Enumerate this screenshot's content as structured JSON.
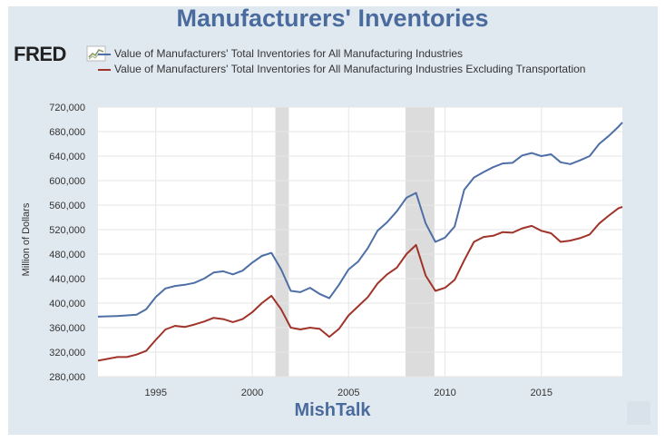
{
  "title": "Manufacturers' Inventories",
  "logo": {
    "text": "FRED"
  },
  "watermark": "MishTalk",
  "chart_data": {
    "type": "line",
    "ylabel": "Million of Dollars",
    "xlabel": "",
    "ylim": [
      280000,
      720000
    ],
    "xlim": [
      1992.0,
      2019.2
    ],
    "yticks": [
      280000,
      320000,
      360000,
      400000,
      440000,
      480000,
      520000,
      560000,
      600000,
      640000,
      680000,
      720000
    ],
    "ytick_labels": [
      "280,000",
      "320,000",
      "360,000",
      "400,000",
      "440,000",
      "480,000",
      "520,000",
      "560,000",
      "600,000",
      "640,000",
      "680,000",
      "720,000"
    ],
    "xticks": [
      1995,
      2000,
      2005,
      2010,
      2015
    ],
    "xtick_labels": [
      "1995",
      "2000",
      "2005",
      "2010",
      "2015"
    ],
    "grid": true,
    "legend": "top",
    "recessions": [
      [
        2001.2,
        2001.9
      ],
      [
        2007.95,
        2009.45
      ]
    ],
    "series": [
      {
        "name": "Value of Manufacturers' Total Inventories for All Manufacturing Industries",
        "color": "#4e6fa6",
        "x": [
          1992.0,
          1993.0,
          1993.5,
          1994.0,
          1994.5,
          1995.0,
          1995.5,
          1996.0,
          1996.5,
          1997.0,
          1997.5,
          1998.0,
          1998.5,
          1999.0,
          1999.5,
          2000.0,
          2000.5,
          2001.0,
          2001.5,
          2002.0,
          2002.5,
          2003.0,
          2003.5,
          2004.0,
          2004.5,
          2005.0,
          2005.5,
          2006.0,
          2006.5,
          2007.0,
          2007.5,
          2008.0,
          2008.5,
          2009.0,
          2009.5,
          2010.0,
          2010.5,
          2011.0,
          2011.5,
          2012.0,
          2012.5,
          2013.0,
          2013.5,
          2014.0,
          2014.5,
          2015.0,
          2015.5,
          2016.0,
          2016.5,
          2017.0,
          2017.5,
          2018.0,
          2018.5,
          2019.0,
          2019.2
        ],
        "y": [
          378000,
          379000,
          380000,
          381000,
          390000,
          410000,
          424000,
          428000,
          430000,
          433000,
          440000,
          450000,
          452000,
          447000,
          453000,
          466000,
          477000,
          482000,
          455000,
          420000,
          418000,
          425000,
          415000,
          408000,
          430000,
          455000,
          468000,
          490000,
          518000,
          532000,
          550000,
          572000,
          580000,
          530000,
          500000,
          507000,
          525000,
          585000,
          605000,
          614000,
          622000,
          628000,
          629000,
          641000,
          645000,
          640000,
          643000,
          630000,
          627000,
          633000,
          640000,
          660000,
          673000,
          688000,
          695000
        ]
      },
      {
        "name": "Value of Manufacturers' Total Inventories for All Manufacturing Industries Excluding Transportation",
        "color": "#a0332a",
        "x": [
          1992.0,
          1993.0,
          1993.5,
          1994.0,
          1994.5,
          1995.0,
          1995.5,
          1996.0,
          1996.5,
          1997.0,
          1997.5,
          1998.0,
          1998.5,
          1999.0,
          1999.5,
          2000.0,
          2000.5,
          2001.0,
          2001.5,
          2002.0,
          2002.5,
          2003.0,
          2003.5,
          2004.0,
          2004.5,
          2005.0,
          2005.5,
          2006.0,
          2006.5,
          2007.0,
          2007.5,
          2008.0,
          2008.5,
          2009.0,
          2009.5,
          2010.0,
          2010.5,
          2011.0,
          2011.5,
          2012.0,
          2012.5,
          2013.0,
          2013.5,
          2014.0,
          2014.5,
          2015.0,
          2015.5,
          2016.0,
          2016.5,
          2017.0,
          2017.5,
          2018.0,
          2018.5,
          2019.0,
          2019.2
        ],
        "y": [
          306000,
          312000,
          312000,
          316000,
          322000,
          340000,
          357000,
          363000,
          361000,
          365000,
          370000,
          376000,
          374000,
          369000,
          374000,
          385000,
          400000,
          412000,
          390000,
          360000,
          357000,
          360000,
          358000,
          345000,
          358000,
          380000,
          395000,
          410000,
          432000,
          447000,
          458000,
          480000,
          495000,
          445000,
          420000,
          425000,
          438000,
          470000,
          500000,
          508000,
          510000,
          516000,
          515000,
          522000,
          526000,
          518000,
          514000,
          500000,
          502000,
          506000,
          512000,
          530000,
          543000,
          555000,
          557000
        ]
      }
    ]
  }
}
